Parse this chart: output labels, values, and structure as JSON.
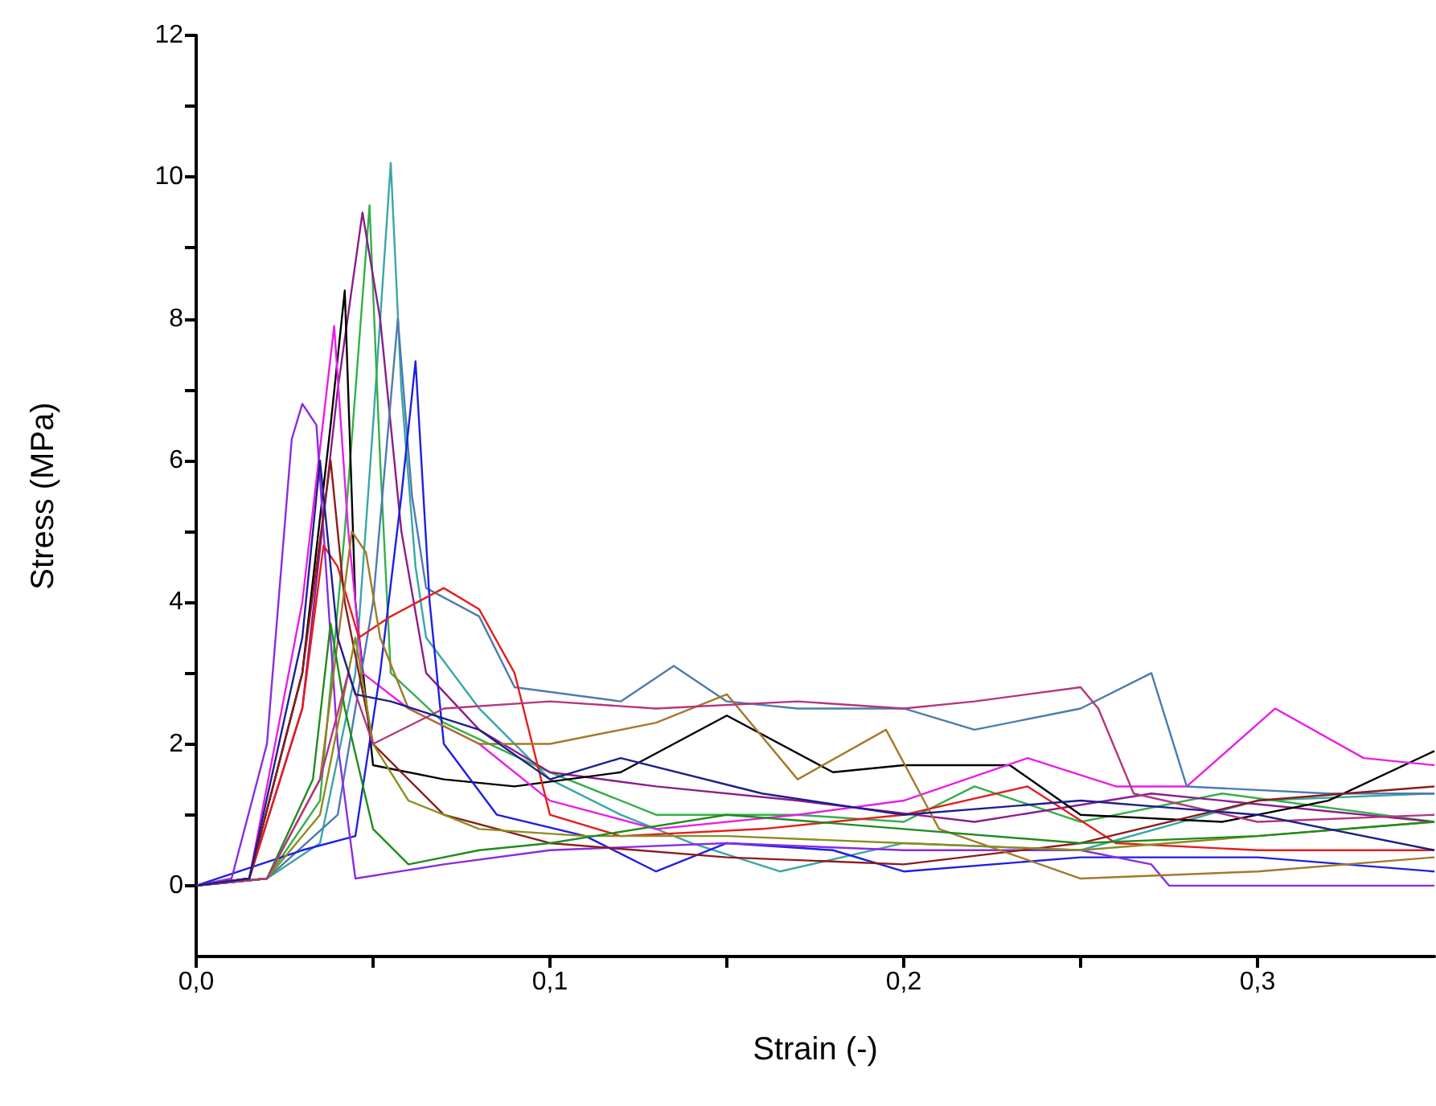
{
  "chart_data": {
    "type": "line",
    "xlabel": "Strain (-)",
    "ylabel": "Stress (MPa)",
    "marker": "none",
    "line_style": "solid",
    "xlim": [
      0,
      0.35
    ],
    "ylim": [
      -1,
      12
    ],
    "xticks": [
      {
        "value": 0,
        "label": "0,0"
      },
      {
        "value": 0.05,
        "label": null
      },
      {
        "value": 0.1,
        "label": "0,1"
      },
      {
        "value": 0.15,
        "label": null
      },
      {
        "value": 0.2,
        "label": "0,2"
      },
      {
        "value": 0.25,
        "label": null
      },
      {
        "value": 0.3,
        "label": "0,3"
      }
    ],
    "yticks": [
      0,
      {
        "value": 1,
        "label": null
      },
      2,
      {
        "value": 3,
        "label": null
      },
      4,
      {
        "value": 5,
        "label": null
      },
      6,
      {
        "value": 7,
        "label": null
      },
      8,
      {
        "value": 9,
        "label": null
      },
      10,
      {
        "value": 11,
        "label": null
      },
      12
    ],
    "series": [
      {
        "color": "#3aa6a6",
        "x": [
          0,
          0.02,
          0.035,
          0.045,
          0.05,
          0.055,
          0.058,
          0.062,
          0.065,
          0.08,
          0.1,
          0.12,
          0.14,
          0.165,
          0.2,
          0.25,
          0.3,
          0.35
        ],
        "values": [
          0,
          0.1,
          0.6,
          3,
          6.5,
          10.2,
          7,
          4.5,
          3.5,
          2.5,
          1.5,
          1.0,
          0.6,
          0.2,
          0.6,
          0.5,
          1.2,
          1.3
        ]
      },
      {
        "color": "#33b04a",
        "x": [
          0,
          0.02,
          0.035,
          0.042,
          0.049,
          0.052,
          0.055,
          0.07,
          0.1,
          0.13,
          0.17,
          0.2,
          0.22,
          0.25,
          0.29,
          0.35
        ],
        "values": [
          0,
          0.1,
          1.2,
          5,
          9.6,
          6,
          3,
          2.3,
          1.6,
          1.0,
          1.0,
          0.9,
          1.4,
          0.9,
          1.3,
          0.9
        ]
      },
      {
        "color": "#8c1c8c",
        "x": [
          0,
          0.015,
          0.03,
          0.04,
          0.047,
          0.052,
          0.058,
          0.065,
          0.08,
          0.1,
          0.13,
          0.17,
          0.22,
          0.27,
          0.35
        ],
        "values": [
          0,
          0.1,
          2.5,
          7,
          9.5,
          8,
          5,
          3,
          2.2,
          1.6,
          1.4,
          1.2,
          0.9,
          1.3,
          0.9
        ]
      },
      {
        "color": "#000000",
        "x": [
          0,
          0.015,
          0.03,
          0.038,
          0.042,
          0.045,
          0.05,
          0.07,
          0.09,
          0.12,
          0.15,
          0.18,
          0.2,
          0.23,
          0.25,
          0.29,
          0.32,
          0.35
        ],
        "values": [
          0,
          0.1,
          3,
          6.5,
          8.4,
          4,
          1.7,
          1.5,
          1.4,
          1.6,
          2.4,
          1.6,
          1.7,
          1.7,
          1.0,
          0.9,
          1.2,
          1.9
        ]
      },
      {
        "color": "#e81ee8",
        "x": [
          0,
          0.015,
          0.03,
          0.039,
          0.043,
          0.047,
          0.06,
          0.08,
          0.1,
          0.13,
          0.17,
          0.2,
          0.235,
          0.26,
          0.28,
          0.305,
          0.33,
          0.35
        ],
        "values": [
          0,
          0.1,
          4,
          7.9,
          5,
          3,
          2.5,
          2.0,
          1.2,
          0.8,
          1.0,
          1.2,
          1.8,
          1.4,
          1.4,
          2.5,
          1.8,
          1.7
        ]
      },
      {
        "color": "#4b7bb0",
        "x": [
          0,
          0.02,
          0.04,
          0.05,
          0.057,
          0.061,
          0.065,
          0.08,
          0.09,
          0.12,
          0.135,
          0.15,
          0.17,
          0.2,
          0.22,
          0.25,
          0.27,
          0.28,
          0.32,
          0.35
        ],
        "values": [
          0,
          0.1,
          1.0,
          4,
          8.0,
          5.5,
          4.2,
          3.8,
          2.8,
          2.6,
          3.1,
          2.6,
          2.5,
          2.5,
          2.2,
          2.5,
          3.0,
          1.4,
          1.3,
          1.3
        ]
      },
      {
        "color": "#1e1ee6",
        "x": [
          0,
          0.03,
          0.045,
          0.052,
          0.058,
          0.062,
          0.066,
          0.07,
          0.085,
          0.11,
          0.13,
          0.15,
          0.18,
          0.2,
          0.25,
          0.3,
          0.35
        ],
        "values": [
          0,
          0.5,
          0.7,
          3,
          5.5,
          7.4,
          4,
          2.0,
          1.0,
          0.7,
          0.2,
          0.6,
          0.5,
          0.2,
          0.4,
          0.4,
          0.2
        ]
      },
      {
        "color": "#8a2be2",
        "x": [
          0,
          0.01,
          0.02,
          0.027,
          0.03,
          0.034,
          0.04,
          0.045,
          0.07,
          0.1,
          0.15,
          0.2,
          0.25,
          0.27,
          0.275,
          0.35
        ],
        "values": [
          0,
          0.1,
          2,
          6.3,
          6.8,
          6.5,
          2,
          0.1,
          0.3,
          0.5,
          0.6,
          0.5,
          0.5,
          0.3,
          0,
          0
        ]
      },
      {
        "color": "#e41e1e",
        "x": [
          0,
          0.015,
          0.03,
          0.036,
          0.04,
          0.046,
          0.055,
          0.07,
          0.08,
          0.09,
          0.1,
          0.12,
          0.16,
          0.2,
          0.235,
          0.26,
          0.3,
          0.35
        ],
        "values": [
          0,
          0.1,
          2.5,
          4.8,
          4.5,
          3.5,
          3.8,
          4.2,
          3.9,
          3.0,
          1.0,
          0.7,
          0.8,
          1.0,
          1.4,
          0.6,
          0.5,
          0.5
        ]
      },
      {
        "color": "#8b1c1c",
        "x": [
          0,
          0.015,
          0.03,
          0.038,
          0.042,
          0.05,
          0.07,
          0.1,
          0.15,
          0.2,
          0.25,
          0.3,
          0.35
        ],
        "values": [
          0,
          0.1,
          3,
          6.0,
          4,
          2.0,
          1.0,
          0.6,
          0.4,
          0.3,
          0.6,
          1.2,
          1.4
        ]
      },
      {
        "color": "#a5782a",
        "x": [
          0,
          0.02,
          0.035,
          0.044,
          0.048,
          0.052,
          0.06,
          0.08,
          0.1,
          0.13,
          0.15,
          0.17,
          0.195,
          0.21,
          0.25,
          0.3,
          0.35
        ],
        "values": [
          0,
          0.1,
          1.5,
          5.0,
          4.7,
          3.5,
          2.5,
          2.0,
          2.0,
          2.3,
          2.7,
          1.5,
          2.2,
          0.8,
          0.1,
          0.2,
          0.4
        ]
      },
      {
        "color": "#8c8c1e",
        "x": [
          0,
          0.02,
          0.035,
          0.045,
          0.05,
          0.06,
          0.08,
          0.11,
          0.15,
          0.2,
          0.25,
          0.3,
          0.35
        ],
        "values": [
          0,
          0.1,
          1.0,
          3.5,
          2.0,
          1.2,
          0.8,
          0.7,
          0.7,
          0.6,
          0.5,
          0.7,
          0.9
        ]
      },
      {
        "color": "#1e8c1e",
        "x": [
          0,
          0.02,
          0.033,
          0.038,
          0.042,
          0.05,
          0.06,
          0.08,
          0.1,
          0.15,
          0.2,
          0.25,
          0.3,
          0.35
        ],
        "values": [
          0,
          0.1,
          1.5,
          3.7,
          2.5,
          0.8,
          0.3,
          0.5,
          0.6,
          1.0,
          0.8,
          0.6,
          0.7,
          0.9
        ]
      },
      {
        "color": "#b4357f",
        "x": [
          0,
          0.02,
          0.035,
          0.043,
          0.05,
          0.07,
          0.1,
          0.13,
          0.17,
          0.2,
          0.22,
          0.25,
          0.255,
          0.265,
          0.3,
          0.35
        ],
        "values": [
          0,
          0.1,
          1.5,
          3.0,
          2.0,
          2.5,
          2.6,
          2.5,
          2.6,
          2.5,
          2.6,
          2.8,
          2.5,
          1.3,
          0.9,
          1.0
        ]
      },
      {
        "color": "#1e1e8c",
        "x": [
          0,
          0.015,
          0.03,
          0.035,
          0.04,
          0.045,
          0.055,
          0.08,
          0.1,
          0.12,
          0.16,
          0.2,
          0.25,
          0.3,
          0.35
        ],
        "values": [
          0,
          0.1,
          3.5,
          6.0,
          3.5,
          2.7,
          2.6,
          2.2,
          1.5,
          1.8,
          1.3,
          1.0,
          1.2,
          1.0,
          0.5
        ]
      }
    ]
  }
}
